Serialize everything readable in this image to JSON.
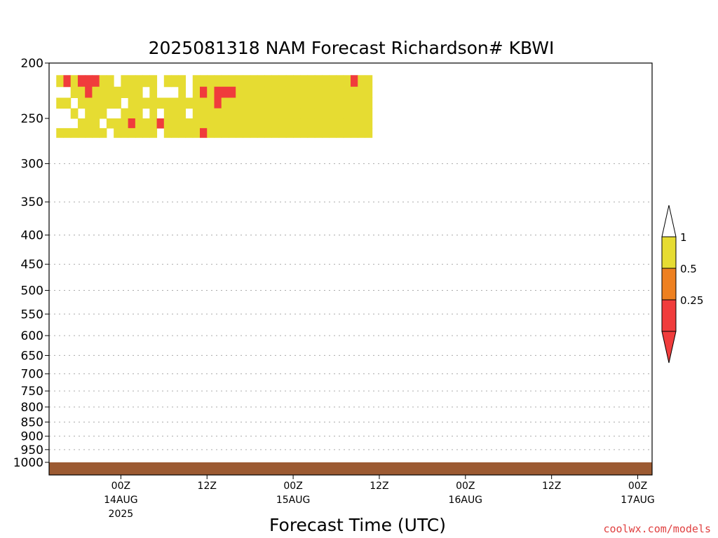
{
  "chart_data": {
    "type": "heatmap",
    "title": "2025081318 NAM Forecast Richardson# KBWI",
    "xlabel": "Forecast Time (UTC)",
    "ylabel": "",
    "y_axis": {
      "scale": "log-pressure",
      "range": [
        1000,
        200
      ],
      "ticks": [
        200,
        250,
        300,
        350,
        400,
        450,
        500,
        550,
        600,
        650,
        700,
        750,
        800,
        850,
        900,
        950,
        1000
      ],
      "tick_labels": [
        "200",
        "250",
        "300",
        "350",
        "400",
        "450",
        "500",
        "550",
        "600",
        "650",
        "700",
        "750",
        "800",
        "850",
        "900",
        "950",
        "1000"
      ],
      "dotted_grid_levels": [
        300,
        350,
        400,
        450,
        500,
        550,
        600,
        650,
        700,
        750,
        800,
        850,
        900,
        950
      ]
    },
    "x_axis": {
      "start_hour": -4,
      "end_hour": 80,
      "ticks": [
        {
          "hour": 6,
          "label": "00Z",
          "sub": "14AUG",
          "sub2": "2025"
        },
        {
          "hour": 18,
          "label": "12Z",
          "sub": "",
          "sub2": ""
        },
        {
          "hour": 30,
          "label": "00Z",
          "sub": "15AUG",
          "sub2": ""
        },
        {
          "hour": 42,
          "label": "12Z",
          "sub": "",
          "sub2": ""
        },
        {
          "hour": 54,
          "label": "00Z",
          "sub": "16AUG",
          "sub2": ""
        },
        {
          "hour": 66,
          "label": "12Z",
          "sub": "",
          "sub2": ""
        },
        {
          "hour": 78,
          "label": "00Z",
          "sub": "17AUG",
          "sub2": ""
        }
      ]
    },
    "color_scale": {
      "levels": [
        {
          "label": "0.25",
          "color": "#f03c3c",
          "range": [
            0,
            0.25
          ]
        },
        {
          "label": "0.5",
          "color": "#ee8020",
          "range": [
            0.25,
            0.5
          ]
        },
        {
          "label": "1",
          "color": "#e6dc32",
          "range": [
            0.5,
            1
          ]
        }
      ],
      "below_min_color": "#f03c3c",
      "above_max_color": "#ffffff"
    },
    "ground_color": "#9c5a32",
    "cells": [
      [
        -3,
        210,
        2,
        1
      ],
      [
        -2,
        210,
        3,
        1
      ],
      [
        -1,
        210,
        2,
        0
      ],
      [
        -1,
        220,
        2,
        0
      ],
      [
        0,
        210,
        3,
        1
      ],
      [
        0,
        220,
        2,
        0
      ],
      [
        1,
        210,
        3,
        0
      ],
      [
        1,
        220,
        3,
        0
      ],
      [
        -3,
        230,
        2,
        0
      ],
      [
        -2,
        230,
        2,
        0
      ],
      [
        0,
        230,
        2,
        0
      ],
      [
        1,
        230,
        2,
        1
      ],
      [
        2,
        210,
        3,
        1
      ],
      [
        2,
        220,
        2,
        0
      ],
      [
        2,
        230,
        2,
        0
      ],
      [
        3,
        210,
        2,
        1
      ],
      [
        3,
        220,
        2,
        0
      ],
      [
        3,
        230,
        2,
        1
      ],
      [
        -1,
        240,
        2,
        0
      ],
      [
        1,
        240,
        2,
        0
      ],
      [
        2,
        240,
        2,
        0
      ],
      [
        3,
        240,
        2,
        0
      ],
      [
        4,
        210,
        2,
        0
      ],
      [
        4,
        220,
        2,
        0
      ],
      [
        4,
        230,
        2,
        0
      ],
      [
        5,
        220,
        2,
        1
      ],
      [
        5,
        230,
        2,
        0
      ],
      [
        0,
        250,
        2,
        0
      ],
      [
        1,
        250,
        2,
        0
      ],
      [
        2,
        250,
        2,
        0
      ],
      [
        4,
        250,
        2,
        0
      ],
      [
        5,
        250,
        2,
        0
      ],
      [
        6,
        210,
        2,
        0
      ],
      [
        6,
        220,
        2,
        0
      ],
      [
        6,
        240,
        2,
        0
      ],
      [
        6,
        250,
        2,
        0
      ],
      [
        7,
        210,
        2,
        1
      ],
      [
        7,
        220,
        2,
        0
      ],
      [
        7,
        230,
        2,
        0
      ],
      [
        7,
        240,
        2,
        0
      ],
      [
        7,
        250,
        3,
        0
      ],
      [
        -3,
        260,
        2,
        0
      ],
      [
        -2,
        260,
        2,
        0
      ],
      [
        -1,
        260,
        2,
        0
      ],
      [
        0,
        260,
        2,
        0
      ],
      [
        1,
        260,
        2,
        0
      ],
      [
        2,
        260,
        2,
        0
      ],
      [
        3,
        260,
        2,
        0
      ],
      [
        5,
        260,
        2,
        0
      ],
      [
        6,
        260,
        2,
        0
      ],
      [
        7,
        260,
        2,
        0
      ],
      [
        8,
        210,
        2,
        1
      ],
      [
        8,
        220,
        2,
        1
      ],
      [
        8,
        230,
        2,
        0
      ],
      [
        8,
        240,
        2,
        1
      ],
      [
        8,
        250,
        2,
        0
      ],
      [
        8,
        260,
        2,
        0
      ],
      [
        9,
        210,
        2,
        0
      ],
      [
        9,
        230,
        2,
        0
      ],
      [
        9,
        250,
        2,
        0
      ],
      [
        9,
        260,
        2,
        0
      ],
      [
        10,
        210,
        2,
        1
      ],
      [
        10,
        220,
        2,
        1
      ],
      [
        10,
        230,
        2,
        1
      ],
      [
        10,
        240,
        2,
        0
      ],
      [
        10,
        250,
        2,
        0
      ],
      [
        10,
        260,
        2,
        0
      ],
      [
        11,
        230,
        2,
        1
      ],
      [
        11,
        250,
        3,
        0
      ],
      [
        12,
        210,
        2,
        0
      ],
      [
        12,
        230,
        2,
        1
      ],
      [
        12,
        240,
        2,
        0
      ],
      [
        12,
        250,
        2,
        0
      ],
      [
        12,
        260,
        2,
        0
      ],
      [
        13,
        210,
        2,
        1
      ],
      [
        13,
        230,
        2,
        1
      ],
      [
        13,
        240,
        2,
        1
      ],
      [
        13,
        250,
        2,
        0
      ],
      [
        13,
        260,
        2,
        1
      ],
      [
        14,
        210,
        2,
        0
      ],
      [
        14,
        220,
        2,
        0
      ],
      [
        14,
        230,
        2,
        1
      ],
      [
        14,
        240,
        2,
        0
      ],
      [
        14,
        250,
        2,
        0
      ],
      [
        14,
        260,
        2,
        0
      ],
      [
        15,
        230,
        2,
        1
      ],
      [
        15,
        250,
        2,
        0
      ],
      [
        15,
        260,
        2,
        0
      ],
      [
        16,
        210,
        2,
        0
      ],
      [
        16,
        220,
        2,
        0
      ],
      [
        16,
        230,
        2,
        0
      ],
      [
        16,
        240,
        2,
        0
      ],
      [
        16,
        250,
        2,
        0
      ],
      [
        16,
        260,
        2,
        0
      ],
      [
        17,
        210,
        2,
        1
      ],
      [
        17,
        220,
        3,
        0
      ],
      [
        17,
        230,
        2,
        0
      ],
      [
        17,
        240,
        2,
        0
      ],
      [
        17,
        250,
        2,
        0
      ],
      [
        17,
        260,
        3,
        0
      ],
      [
        18,
        210,
        2,
        0
      ],
      [
        18,
        220,
        2,
        0
      ],
      [
        18,
        230,
        2,
        0
      ],
      [
        18,
        240,
        2,
        0
      ],
      [
        18,
        250,
        2,
        0
      ],
      [
        18,
        260,
        2,
        0
      ],
      [
        19,
        210,
        2,
        1
      ],
      [
        19,
        220,
        3,
        0
      ],
      [
        19,
        230,
        3,
        0
      ],
      [
        19,
        240,
        2,
        0
      ],
      [
        19,
        250,
        2,
        0
      ],
      [
        19,
        260,
        2,
        0
      ],
      [
        20,
        210,
        2,
        0
      ],
      [
        20,
        220,
        3,
        0
      ],
      [
        20,
        230,
        2,
        0
      ],
      [
        20,
        240,
        2,
        0
      ],
      [
        20,
        250,
        2,
        0
      ],
      [
        20,
        260,
        2,
        1
      ],
      [
        21,
        210,
        2,
        0
      ],
      [
        21,
        220,
        3,
        0
      ],
      [
        21,
        230,
        2,
        0
      ],
      [
        21,
        240,
        2,
        0
      ],
      [
        21,
        250,
        2,
        0
      ],
      [
        21,
        260,
        2,
        0
      ],
      [
        22,
        210,
        2,
        0
      ],
      [
        22,
        220,
        2,
        1
      ],
      [
        22,
        230,
        2,
        1
      ],
      [
        22,
        240,
        2,
        0
      ],
      [
        22,
        250,
        2,
        1
      ],
      [
        22,
        260,
        2,
        1
      ],
      [
        23,
        210,
        2,
        1
      ],
      [
        23,
        220,
        2,
        1
      ],
      [
        23,
        230,
        2,
        0
      ],
      [
        23,
        240,
        2,
        1
      ],
      [
        23,
        250,
        2,
        1
      ],
      [
        23,
        260,
        2,
        1
      ],
      [
        24,
        210,
        2,
        0
      ],
      [
        24,
        220,
        2,
        0
      ],
      [
        24,
        230,
        2,
        0
      ],
      [
        24,
        240,
        2,
        0
      ],
      [
        24,
        250,
        2,
        0
      ],
      [
        24,
        260,
        2,
        0
      ],
      [
        25,
        210,
        2,
        0
      ],
      [
        25,
        220,
        2,
        0
      ],
      [
        25,
        230,
        2,
        1
      ],
      [
        25,
        240,
        2,
        0
      ],
      [
        25,
        250,
        2,
        0
      ],
      [
        25,
        260,
        2,
        0
      ],
      [
        26,
        210,
        2,
        0
      ],
      [
        26,
        220,
        2,
        0
      ],
      [
        26,
        230,
        2,
        0
      ],
      [
        26,
        240,
        2,
        1
      ],
      [
        26,
        250,
        2,
        0
      ],
      [
        26,
        260,
        2,
        0
      ],
      [
        27,
        210,
        2,
        0
      ],
      [
        27,
        220,
        2,
        0
      ],
      [
        27,
        230,
        2,
        0
      ],
      [
        27,
        240,
        2,
        1
      ],
      [
        27,
        250,
        2,
        1
      ],
      [
        27,
        260,
        2,
        0
      ],
      [
        28,
        210,
        2,
        0
      ],
      [
        28,
        220,
        2,
        1
      ],
      [
        28,
        230,
        2,
        0
      ],
      [
        28,
        240,
        2,
        0
      ],
      [
        28,
        250,
        2,
        0
      ],
      [
        28,
        260,
        2,
        0
      ],
      [
        29,
        210,
        2,
        0
      ],
      [
        29,
        220,
        2,
        0
      ],
      [
        29,
        230,
        2,
        1
      ],
      [
        29,
        240,
        2,
        0
      ],
      [
        29,
        250,
        2,
        0
      ],
      [
        29,
        260,
        2,
        1
      ],
      [
        30,
        210,
        2,
        0
      ],
      [
        30,
        220,
        2,
        0
      ],
      [
        30,
        230,
        2,
        0
      ],
      [
        30,
        240,
        2,
        0
      ],
      [
        30,
        250,
        2,
        1
      ],
      [
        30,
        260,
        2,
        1
      ],
      [
        31,
        210,
        2,
        1
      ],
      [
        31,
        220,
        2,
        0
      ],
      [
        31,
        230,
        2,
        1
      ],
      [
        31,
        240,
        2,
        0
      ],
      [
        31,
        250,
        2,
        0
      ],
      [
        31,
        260,
        2,
        0
      ],
      [
        32,
        210,
        2,
        0
      ],
      [
        32,
        220,
        2,
        1
      ],
      [
        32,
        230,
        2,
        0
      ],
      [
        32,
        240,
        2,
        0
      ],
      [
        32,
        250,
        2,
        1
      ],
      [
        32,
        260,
        2,
        0
      ],
      [
        33,
        210,
        2,
        1
      ],
      [
        33,
        220,
        2,
        0
      ],
      [
        33,
        230,
        2,
        0
      ],
      [
        33,
        240,
        2,
        0
      ],
      [
        33,
        250,
        2,
        1
      ],
      [
        33,
        260,
        2,
        1
      ],
      [
        34,
        210,
        2,
        0
      ],
      [
        34,
        220,
        2,
        0
      ],
      [
        34,
        230,
        2,
        0
      ],
      [
        34,
        240,
        2,
        0
      ],
      [
        34,
        250,
        2,
        0
      ],
      [
        34,
        260,
        2,
        0
      ],
      [
        35,
        210,
        2,
        1
      ],
      [
        35,
        220,
        2,
        1
      ],
      [
        35,
        230,
        2,
        1
      ],
      [
        35,
        240,
        2,
        1
      ],
      [
        35,
        250,
        2,
        0
      ],
      [
        35,
        260,
        2,
        0
      ],
      [
        36,
        210,
        2,
        0
      ],
      [
        36,
        220,
        2,
        0
      ],
      [
        36,
        230,
        2,
        0
      ],
      [
        36,
        240,
        2,
        0
      ],
      [
        36,
        250,
        2,
        1
      ],
      [
        36,
        260,
        2,
        1
      ],
      [
        37,
        210,
        2,
        0
      ],
      [
        37,
        220,
        2,
        0
      ],
      [
        37,
        230,
        2,
        0
      ],
      [
        37,
        240,
        2,
        0
      ],
      [
        37,
        250,
        2,
        0
      ],
      [
        37,
        260,
        2,
        0
      ],
      [
        38,
        210,
        3,
        0
      ],
      [
        38,
        220,
        2,
        1
      ],
      [
        38,
        230,
        2,
        0
      ],
      [
        38,
        240,
        2,
        0
      ],
      [
        38,
        250,
        2,
        1
      ],
      [
        38,
        260,
        2,
        0
      ],
      [
        39,
        210,
        2,
        0
      ],
      [
        39,
        220,
        2,
        1
      ],
      [
        39,
        230,
        2,
        1
      ],
      [
        39,
        240,
        2,
        0
      ],
      [
        39,
        250,
        2,
        1
      ],
      [
        39,
        260,
        2,
        1
      ],
      [
        40,
        210,
        2,
        0
      ],
      [
        40,
        220,
        2,
        0
      ],
      [
        40,
        230,
        2,
        0
      ],
      [
        40,
        240,
        2,
        1
      ],
      [
        40,
        250,
        2,
        0
      ],
      [
        40,
        260,
        2,
        0
      ]
    ]
  }
}
